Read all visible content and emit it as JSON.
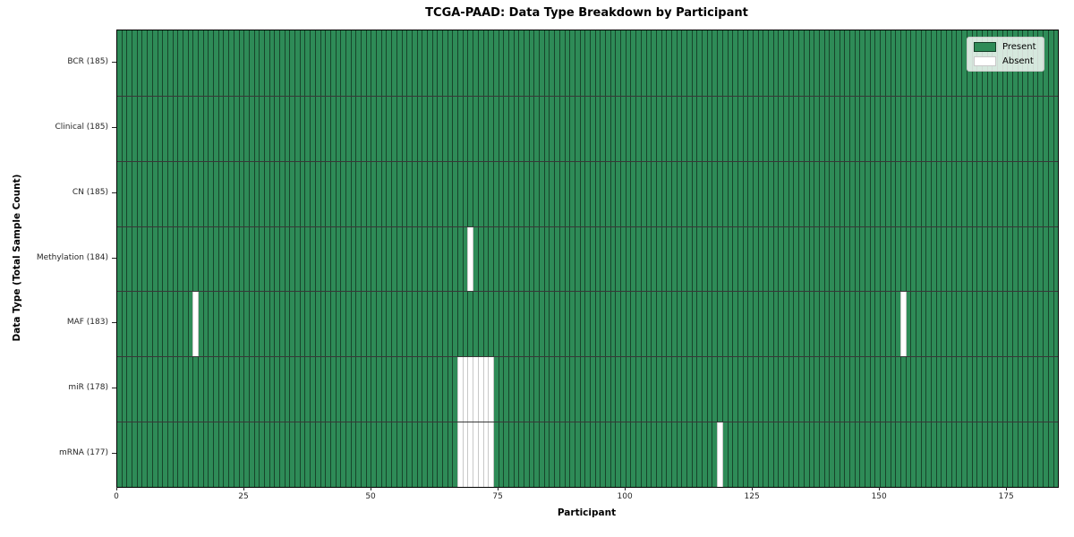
{
  "chart_data": {
    "type": "heatmap",
    "title": "TCGA-PAAD: Data Type Breakdown by Participant",
    "xlabel": "Participant",
    "ylabel": "Data Type (Total Sample Count)",
    "xlim": [
      0,
      185
    ],
    "n_participants": 185,
    "x_ticks": [
      0,
      25,
      50,
      75,
      100,
      125,
      150,
      175
    ],
    "grid": "cell-borders",
    "legend_position": "upper right",
    "legend": [
      {
        "label": "Present",
        "color": "#2e8b57"
      },
      {
        "label": "Absent",
        "color": "#ffffff"
      }
    ],
    "rows": [
      {
        "label": "BCR (185)",
        "data_type": "BCR",
        "total": 185,
        "absent_participants": []
      },
      {
        "label": "Clinical (185)",
        "data_type": "Clinical",
        "total": 185,
        "absent_participants": []
      },
      {
        "label": "CN (185)",
        "data_type": "CN",
        "total": 185,
        "absent_participants": []
      },
      {
        "label": "Methylation (184)",
        "data_type": "Methylation",
        "total": 184,
        "absent_participants": [
          69
        ]
      },
      {
        "label": "MAF (183)",
        "data_type": "MAF",
        "total": 183,
        "absent_participants": [
          15,
          154
        ]
      },
      {
        "label": "miR (178)",
        "data_type": "miR",
        "total": 178,
        "absent_participants": [
          67,
          68,
          69,
          70,
          71,
          72,
          73
        ]
      },
      {
        "label": "mRNA (177)",
        "data_type": "mRNA",
        "total": 177,
        "absent_participants": [
          67,
          68,
          69,
          70,
          71,
          72,
          73,
          118
        ]
      }
    ]
  }
}
